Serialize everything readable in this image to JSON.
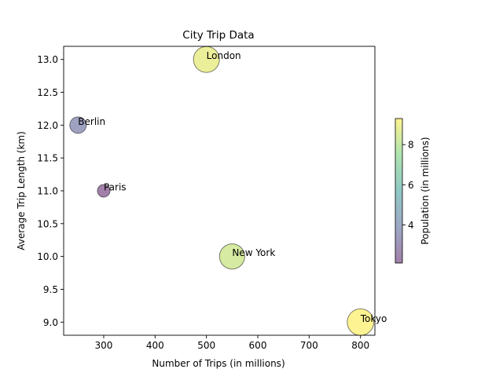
{
  "chart_data": {
    "type": "scatter",
    "title": "City Trip Data",
    "xlabel": "Number of Trips (in millions)",
    "ylabel": "Average Trip Length (km)",
    "xlim": [
      222,
      828
    ],
    "ylim": [
      8.8,
      13.2
    ],
    "xticks": [
      300,
      400,
      500,
      600,
      700,
      800
    ],
    "yticks": [
      9.0,
      9.5,
      10.0,
      10.5,
      11.0,
      11.5,
      12.0,
      12.5,
      13.0
    ],
    "grid": false,
    "points": [
      {
        "label": "New York",
        "x": 550,
        "y": 10.0,
        "population": 8.4
      },
      {
        "label": "London",
        "x": 500,
        "y": 13.0,
        "population": 8.9
      },
      {
        "label": "Paris",
        "x": 300,
        "y": 11.0,
        "population": 2.1
      },
      {
        "label": "Tokyo",
        "x": 800,
        "y": 9.0,
        "population": 9.3
      },
      {
        "label": "Berlin",
        "x": 250,
        "y": 12.0,
        "population": 3.6
      }
    ],
    "colorbar": {
      "label": "Population (in millions)",
      "range": [
        2.1,
        9.3
      ],
      "ticks": [
        4,
        6,
        8
      ],
      "colormap": "viridis"
    }
  }
}
